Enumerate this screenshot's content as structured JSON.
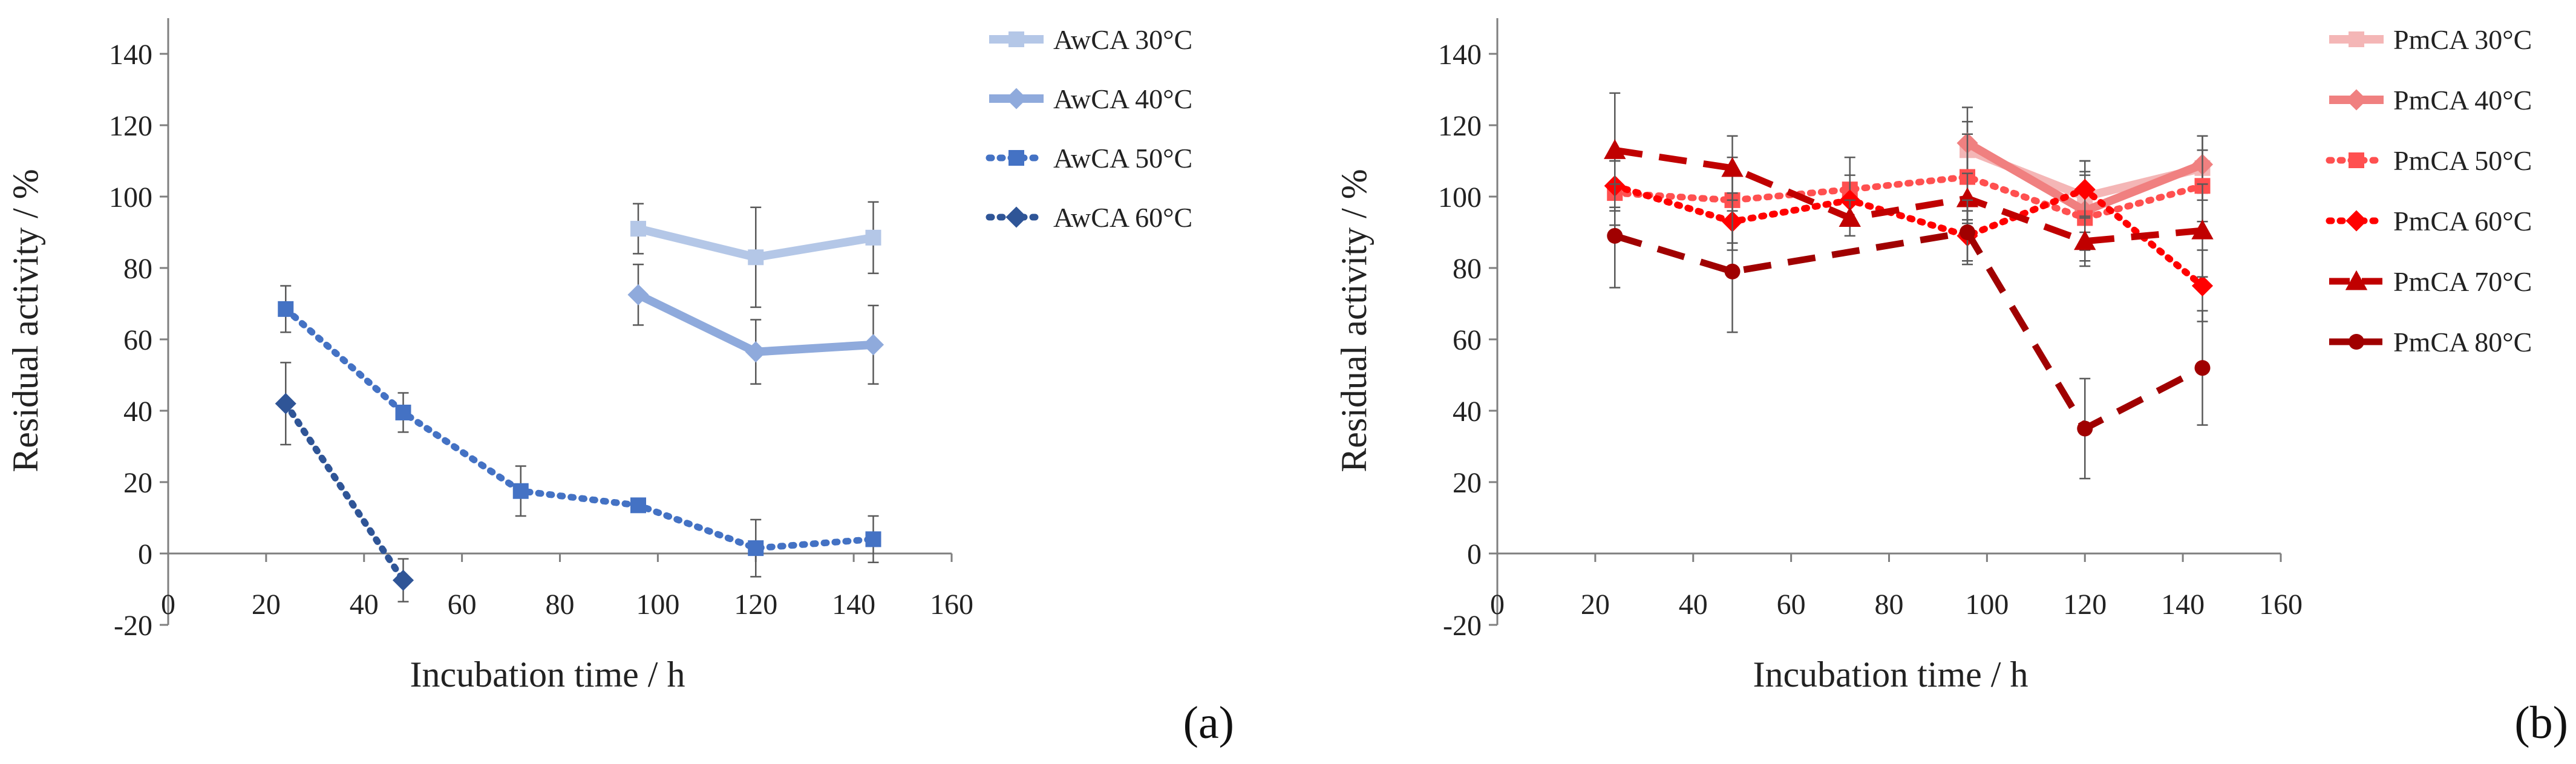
{
  "chart_data": [
    {
      "type": "line",
      "panel_label": "(a)",
      "xlabel": "Incubation time / h",
      "ylabel": "Residual activity / %",
      "xlim": [
        0,
        160
      ],
      "ylim": [
        -20,
        150
      ],
      "x_ticks": [
        0,
        20,
        40,
        60,
        80,
        100,
        120,
        140,
        160
      ],
      "y_ticks": [
        -20,
        0,
        20,
        40,
        60,
        80,
        100,
        120,
        140
      ],
      "legend_position": "right",
      "series": [
        {
          "name": "AwCA 30°C",
          "color": "#b4c7e7",
          "dash": "solid",
          "marker": "square",
          "x": [
            96,
            120,
            144
          ],
          "y": [
            91,
            83,
            88.5
          ],
          "err": [
            7,
            14,
            10
          ]
        },
        {
          "name": "AwCA 40°C",
          "color": "#8faadc",
          "dash": "solid",
          "marker": "diamond",
          "x": [
            96,
            120,
            144
          ],
          "y": [
            72.5,
            56.5,
            58.5
          ],
          "err": [
            8.5,
            9,
            11
          ]
        },
        {
          "name": "AwCA 50°C",
          "color": "#4472c4",
          "dash": "dot",
          "marker": "square",
          "x": [
            24,
            48,
            72,
            96,
            120,
            144
          ],
          "y": [
            68.5,
            39.5,
            17.5,
            13.5,
            1.5,
            4
          ],
          "err": [
            6.5,
            5.5,
            7,
            1.5,
            8,
            6.5
          ]
        },
        {
          "name": "AwCA 60°C",
          "color": "#2f5597",
          "dash": "dot",
          "marker": "diamond",
          "x": [
            24,
            48
          ],
          "y": [
            42,
            -7.5
          ],
          "err": [
            11.5,
            6
          ]
        }
      ]
    },
    {
      "type": "line",
      "panel_label": "(b)",
      "xlabel": "Incubation time / h",
      "ylabel": "Residual activity / %",
      "xlim": [
        0,
        160
      ],
      "ylim": [
        -20,
        150
      ],
      "x_ticks": [
        0,
        20,
        40,
        60,
        80,
        100,
        120,
        140,
        160
      ],
      "y_ticks": [
        -20,
        0,
        20,
        40,
        60,
        80,
        100,
        120,
        140
      ],
      "legend_position": "right",
      "series": [
        {
          "name": "PmCA 30°C",
          "color": "#f4b6b6",
          "dash": "solid",
          "marker": "square",
          "x": [
            96,
            120,
            144
          ],
          "y": [
            113,
            100,
            108
          ],
          "err": [
            8,
            10,
            9
          ]
        },
        {
          "name": "PmCA 40°C",
          "color": "#f08080",
          "dash": "solid",
          "marker": "diamond",
          "x": [
            96,
            120,
            144
          ],
          "y": [
            115,
            96,
            109
          ],
          "err": [
            10,
            11,
            8
          ]
        },
        {
          "name": "PmCA 50°C",
          "color": "#ff5050",
          "dash": "dot",
          "marker": "square",
          "x": [
            24,
            48,
            72,
            96,
            120,
            144
          ],
          "y": [
            101,
            99,
            102,
            105.5,
            94,
            103
          ],
          "err": [
            9,
            12,
            9,
            12,
            12,
            10
          ]
        },
        {
          "name": "PmCA 60°C",
          "color": "#ff0000",
          "dash": "dot",
          "marker": "diamond",
          "x": [
            24,
            48,
            72,
            96,
            120,
            144
          ],
          "y": [
            103,
            93,
            99,
            89,
            102,
            75
          ],
          "err": [
            7,
            8,
            7,
            7,
            8,
            10
          ]
        },
        {
          "name": "PmCA 70°C",
          "color": "#c00000",
          "dash": "dash",
          "marker": "triangle",
          "x": [
            24,
            48,
            72,
            96,
            120,
            144
          ],
          "y": [
            113,
            108,
            94,
            99.5,
            87.5,
            90.5
          ],
          "err": [
            16,
            9,
            5,
            7,
            7,
            13
          ]
        },
        {
          "name": "PmCA 80°C",
          "color": "#a00000",
          "dash": "dash",
          "marker": "circle",
          "x": [
            24,
            48,
            96,
            120,
            144
          ],
          "y": [
            89,
            79,
            90,
            35,
            52
          ],
          "err": [
            14.5,
            17,
            9,
            14,
            16
          ]
        }
      ]
    }
  ]
}
